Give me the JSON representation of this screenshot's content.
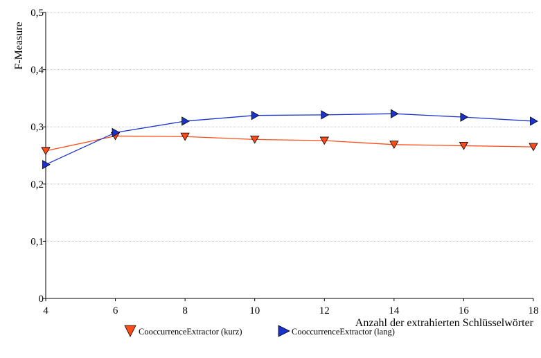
{
  "chart_data": {
    "type": "line",
    "title": "",
    "xlabel": "Anzahl der extrahierten Schlüsselwörter",
    "ylabel": "F-Measure",
    "x": [
      4,
      6,
      8,
      10,
      12,
      14,
      16,
      18
    ],
    "xlim": [
      4,
      18
    ],
    "ylim": [
      0,
      0.5
    ],
    "x_ticks": [
      4,
      6,
      8,
      10,
      12,
      14,
      16,
      18
    ],
    "x_tick_labels": [
      "4",
      "6",
      "8",
      "10",
      "12",
      "14",
      "16",
      "18"
    ],
    "y_ticks": [
      0,
      0.1,
      0.2,
      0.3,
      0.4,
      0.5
    ],
    "y_tick_labels": [
      "0",
      "0,1",
      "0,2",
      "0,3",
      "0,4",
      "0,5"
    ],
    "grid": true,
    "legend_position": "bottom-center",
    "series": [
      {
        "name": "CooccurrenceExtractor (kurz)",
        "values": [
          0.258,
          0.284,
          0.283,
          0.278,
          0.276,
          0.269,
          0.267,
          0.265
        ],
        "color": "#ff4d1a",
        "marker": "triangle-down"
      },
      {
        "name": "CooccurrenceExtractor (lang)",
        "values": [
          0.234,
          0.29,
          0.31,
          0.32,
          0.321,
          0.323,
          0.317,
          0.31
        ],
        "color": "#1a33cc",
        "marker": "triangle-right"
      }
    ]
  }
}
